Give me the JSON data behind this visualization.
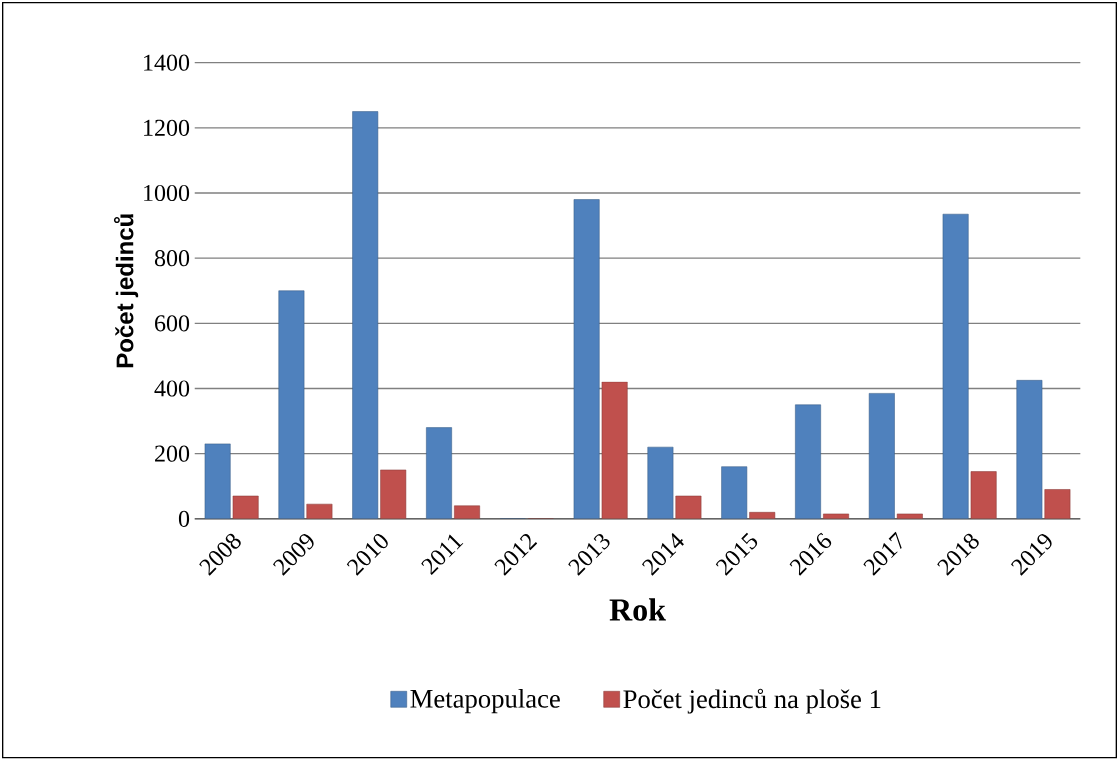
{
  "chart_data": {
    "type": "bar",
    "xlabel": "Rok",
    "ylabel": "Počet jedinců",
    "categories": [
      "2008",
      "2009",
      "2010",
      "2011",
      "2012",
      "2013",
      "2014",
      "2015",
      "2016",
      "2017",
      "2018",
      "2019"
    ],
    "series": [
      {
        "name": "Metapopulace",
        "color": "#4f81bd",
        "values": [
          230,
          700,
          1250,
          280,
          0,
          980,
          220,
          160,
          350,
          385,
          935,
          425
        ]
      },
      {
        "name": "Počet jedinců na ploše 1",
        "color": "#c0504d",
        "values": [
          70,
          45,
          150,
          40,
          0,
          420,
          70,
          20,
          15,
          15,
          145,
          90
        ]
      }
    ],
    "ylim": [
      0,
      1400
    ],
    "yticks": [
      0,
      200,
      400,
      600,
      800,
      1000,
      1200,
      1400
    ],
    "grid": "y",
    "legend": "bottom"
  }
}
